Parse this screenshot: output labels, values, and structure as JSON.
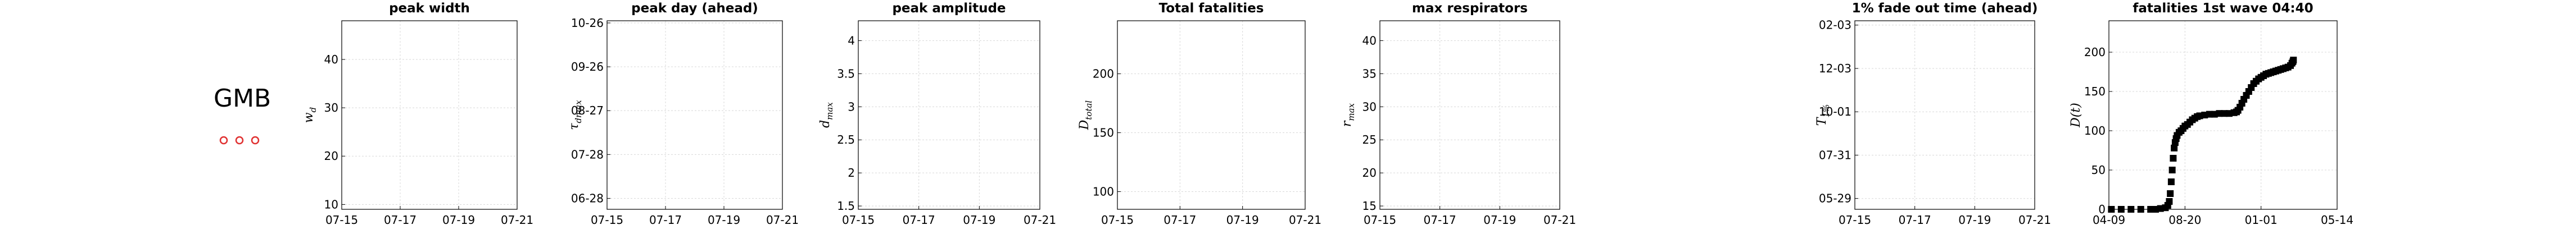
{
  "country": "GMB",
  "legend_dots": {
    "count": 3,
    "color": "#e03030"
  },
  "chart_data": [
    {
      "type": "scatter",
      "title": "peak width",
      "ylabel": "w_d",
      "ylabel_main": "w",
      "ylabel_sub": "d",
      "xticks": [
        "07-15",
        "07-17",
        "07-19",
        "07-21"
      ],
      "yticks": [
        "10",
        "20",
        "30",
        "40"
      ],
      "ylim": [
        9,
        48
      ],
      "xlim": [
        0,
        3
      ],
      "grid": true,
      "points": []
    },
    {
      "type": "scatter",
      "title": "peak day (ahead)",
      "ylabel": "τ_dmax",
      "ylabel_main": "τ",
      "ylabel_sub": "dmax",
      "xticks": [
        "07-15",
        "07-17",
        "07-19",
        "07-21"
      ],
      "yticks": [
        "06-28",
        "07-28",
        "08-27",
        "09-26",
        "10-26"
      ],
      "ylim": [
        0,
        4.3
      ],
      "xlim": [
        0,
        3
      ],
      "grid": true,
      "points": []
    },
    {
      "type": "scatter",
      "title": "peak amplitude",
      "ylabel": "d_max",
      "ylabel_main": "d",
      "ylabel_sub": "max",
      "xticks": [
        "07-15",
        "07-17",
        "07-19",
        "07-21"
      ],
      "yticks": [
        "1.5",
        "2",
        "2.5",
        "3",
        "3.5",
        "4"
      ],
      "ylim": [
        1.45,
        4.3
      ],
      "xlim": [
        0,
        3
      ],
      "grid": true,
      "points": []
    },
    {
      "type": "scatter",
      "title": "Total fatalities",
      "ylabel": "D_total",
      "ylabel_main": "D",
      "ylabel_sub": "total",
      "xticks": [
        "07-15",
        "07-17",
        "07-19",
        "07-21"
      ],
      "yticks": [
        "100",
        "150",
        "200"
      ],
      "ylim": [
        85,
        245
      ],
      "xlim": [
        0,
        3
      ],
      "grid": true,
      "points": []
    },
    {
      "type": "scatter",
      "title": "max respirators",
      "ylabel": "r_max",
      "ylabel_main": "r",
      "ylabel_sub": "max",
      "xticks": [
        "07-15",
        "07-17",
        "07-19",
        "07-21"
      ],
      "yticks": [
        "15",
        "20",
        "25",
        "30",
        "35",
        "40"
      ],
      "ylim": [
        14.5,
        43
      ],
      "xlim": [
        0,
        3
      ],
      "grid": true,
      "points": []
    },
    {
      "type": "scatter",
      "title": "1% fade out time (ahead)",
      "ylabel": "T_1%",
      "ylabel_main": "T",
      "ylabel_sub": "1%",
      "xticks": [
        "07-15",
        "07-17",
        "07-19",
        "07-21"
      ],
      "yticks": [
        "05-29",
        "07-31",
        "10-01",
        "12-03",
        "02-03"
      ],
      "ylim": [
        0,
        4.35
      ],
      "xlim": [
        0,
        3
      ],
      "grid": true,
      "points": []
    },
    {
      "type": "scatter",
      "title": "fatalities 1st wave 04:40",
      "ylabel": "D(t)",
      "ylabel_main": "D(t)",
      "ylabel_sub": "",
      "xticks": [
        "04-09",
        "08-20",
        "01-01",
        "05-14"
      ],
      "yticks": [
        "0",
        "50",
        "100",
        "150",
        "200"
      ],
      "ylim": [
        0,
        240
      ],
      "xlim": [
        -5,
        460
      ],
      "grid": true,
      "points": [
        [
          0,
          0
        ],
        [
          20,
          0
        ],
        [
          40,
          0
        ],
        [
          60,
          0
        ],
        [
          80,
          0
        ],
        [
          90,
          0
        ],
        [
          100,
          1
        ],
        [
          110,
          2
        ],
        [
          115,
          5
        ],
        [
          118,
          10
        ],
        [
          120,
          20
        ],
        [
          122,
          35
        ],
        [
          124,
          50
        ],
        [
          126,
          65
        ],
        [
          128,
          78
        ],
        [
          130,
          85
        ],
        [
          132,
          90
        ],
        [
          134,
          94
        ],
        [
          138,
          98
        ],
        [
          142,
          100
        ],
        [
          146,
          103
        ],
        [
          150,
          106
        ],
        [
          155,
          108
        ],
        [
          160,
          111
        ],
        [
          165,
          114
        ],
        [
          170,
          116
        ],
        [
          175,
          118
        ],
        [
          180,
          119
        ],
        [
          190,
          120
        ],
        [
          200,
          121
        ],
        [
          210,
          121
        ],
        [
          220,
          122
        ],
        [
          230,
          122
        ],
        [
          240,
          122
        ],
        [
          250,
          123
        ],
        [
          255,
          124
        ],
        [
          258,
          126
        ],
        [
          262,
          130
        ],
        [
          266,
          135
        ],
        [
          270,
          140
        ],
        [
          275,
          145
        ],
        [
          280,
          150
        ],
        [
          285,
          155
        ],
        [
          290,
          160
        ],
        [
          295,
          163
        ],
        [
          300,
          166
        ],
        [
          305,
          168
        ],
        [
          310,
          170
        ],
        [
          315,
          172
        ],
        [
          320,
          173
        ],
        [
          325,
          174
        ],
        [
          330,
          175
        ],
        [
          335,
          176
        ],
        [
          340,
          177
        ],
        [
          345,
          178
        ],
        [
          350,
          179
        ],
        [
          355,
          180
        ],
        [
          360,
          181
        ],
        [
          365,
          183
        ],
        [
          368,
          186
        ],
        [
          370,
          188
        ],
        [
          371,
          190
        ]
      ]
    }
  ]
}
